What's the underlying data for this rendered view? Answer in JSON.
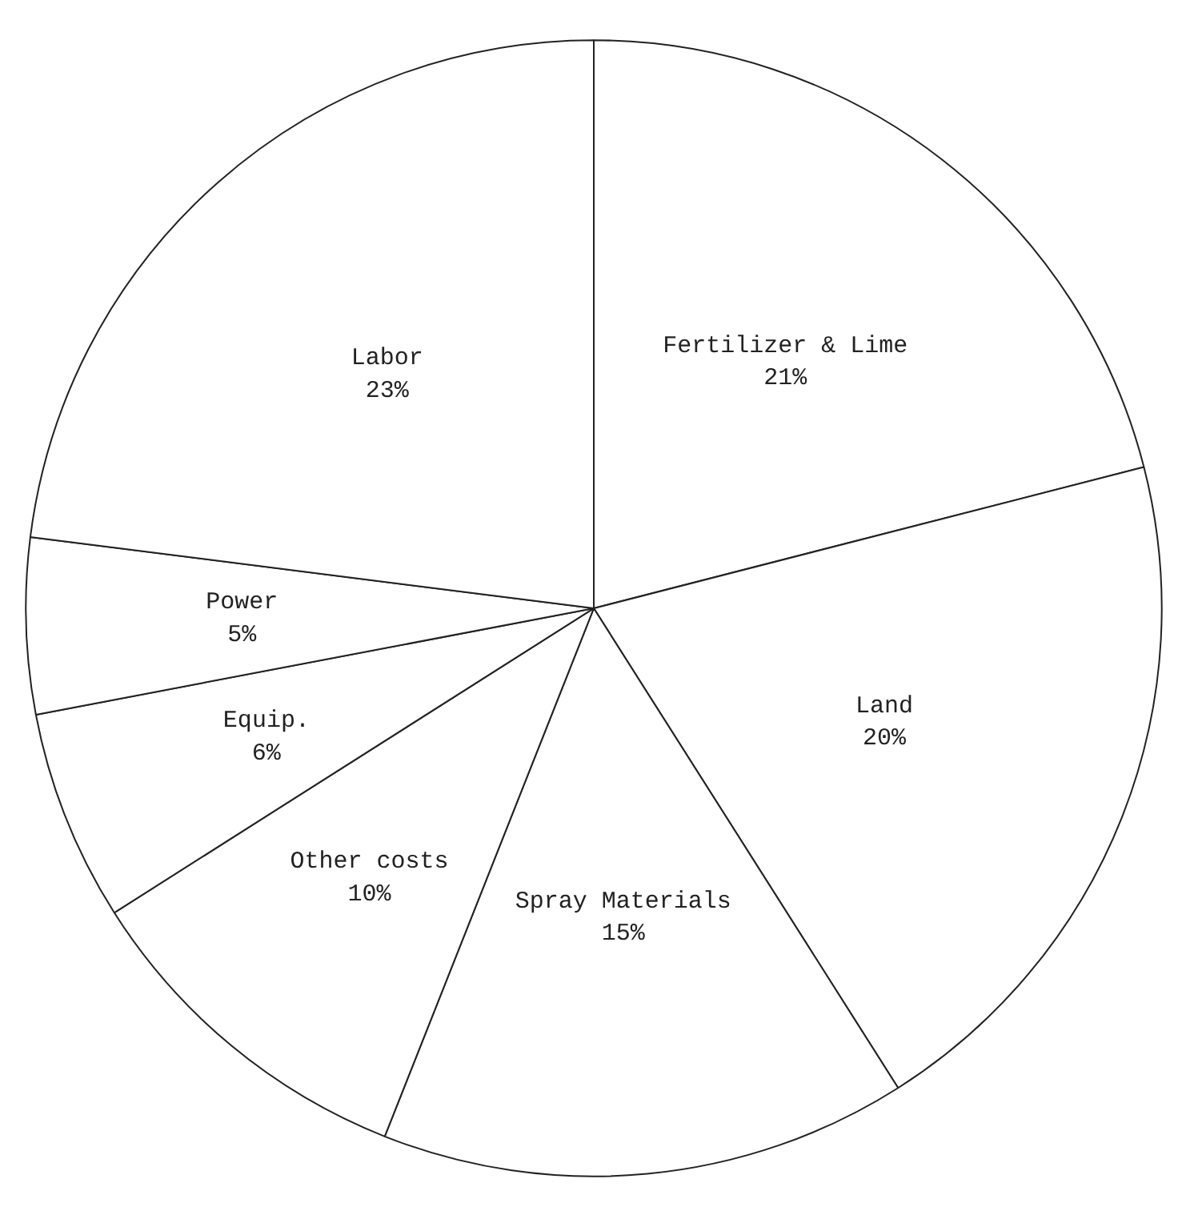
{
  "chart_data": {
    "type": "pie",
    "categories": [
      "Fertilizer & Lime",
      "Land",
      "Spray Materials",
      "Other costs",
      "Equip.",
      "Power",
      "Labor"
    ],
    "values": [
      21,
      20,
      15,
      10,
      6,
      5,
      23
    ],
    "value_labels": [
      "21%",
      "20%",
      "15%",
      "10%",
      "6%",
      "5%",
      "23%"
    ],
    "colors": [
      "#ffffff",
      "#ffffff",
      "#ffffff",
      "#ffffff",
      "#ffffff",
      "#ffffff",
      "#ffffff"
    ]
  }
}
